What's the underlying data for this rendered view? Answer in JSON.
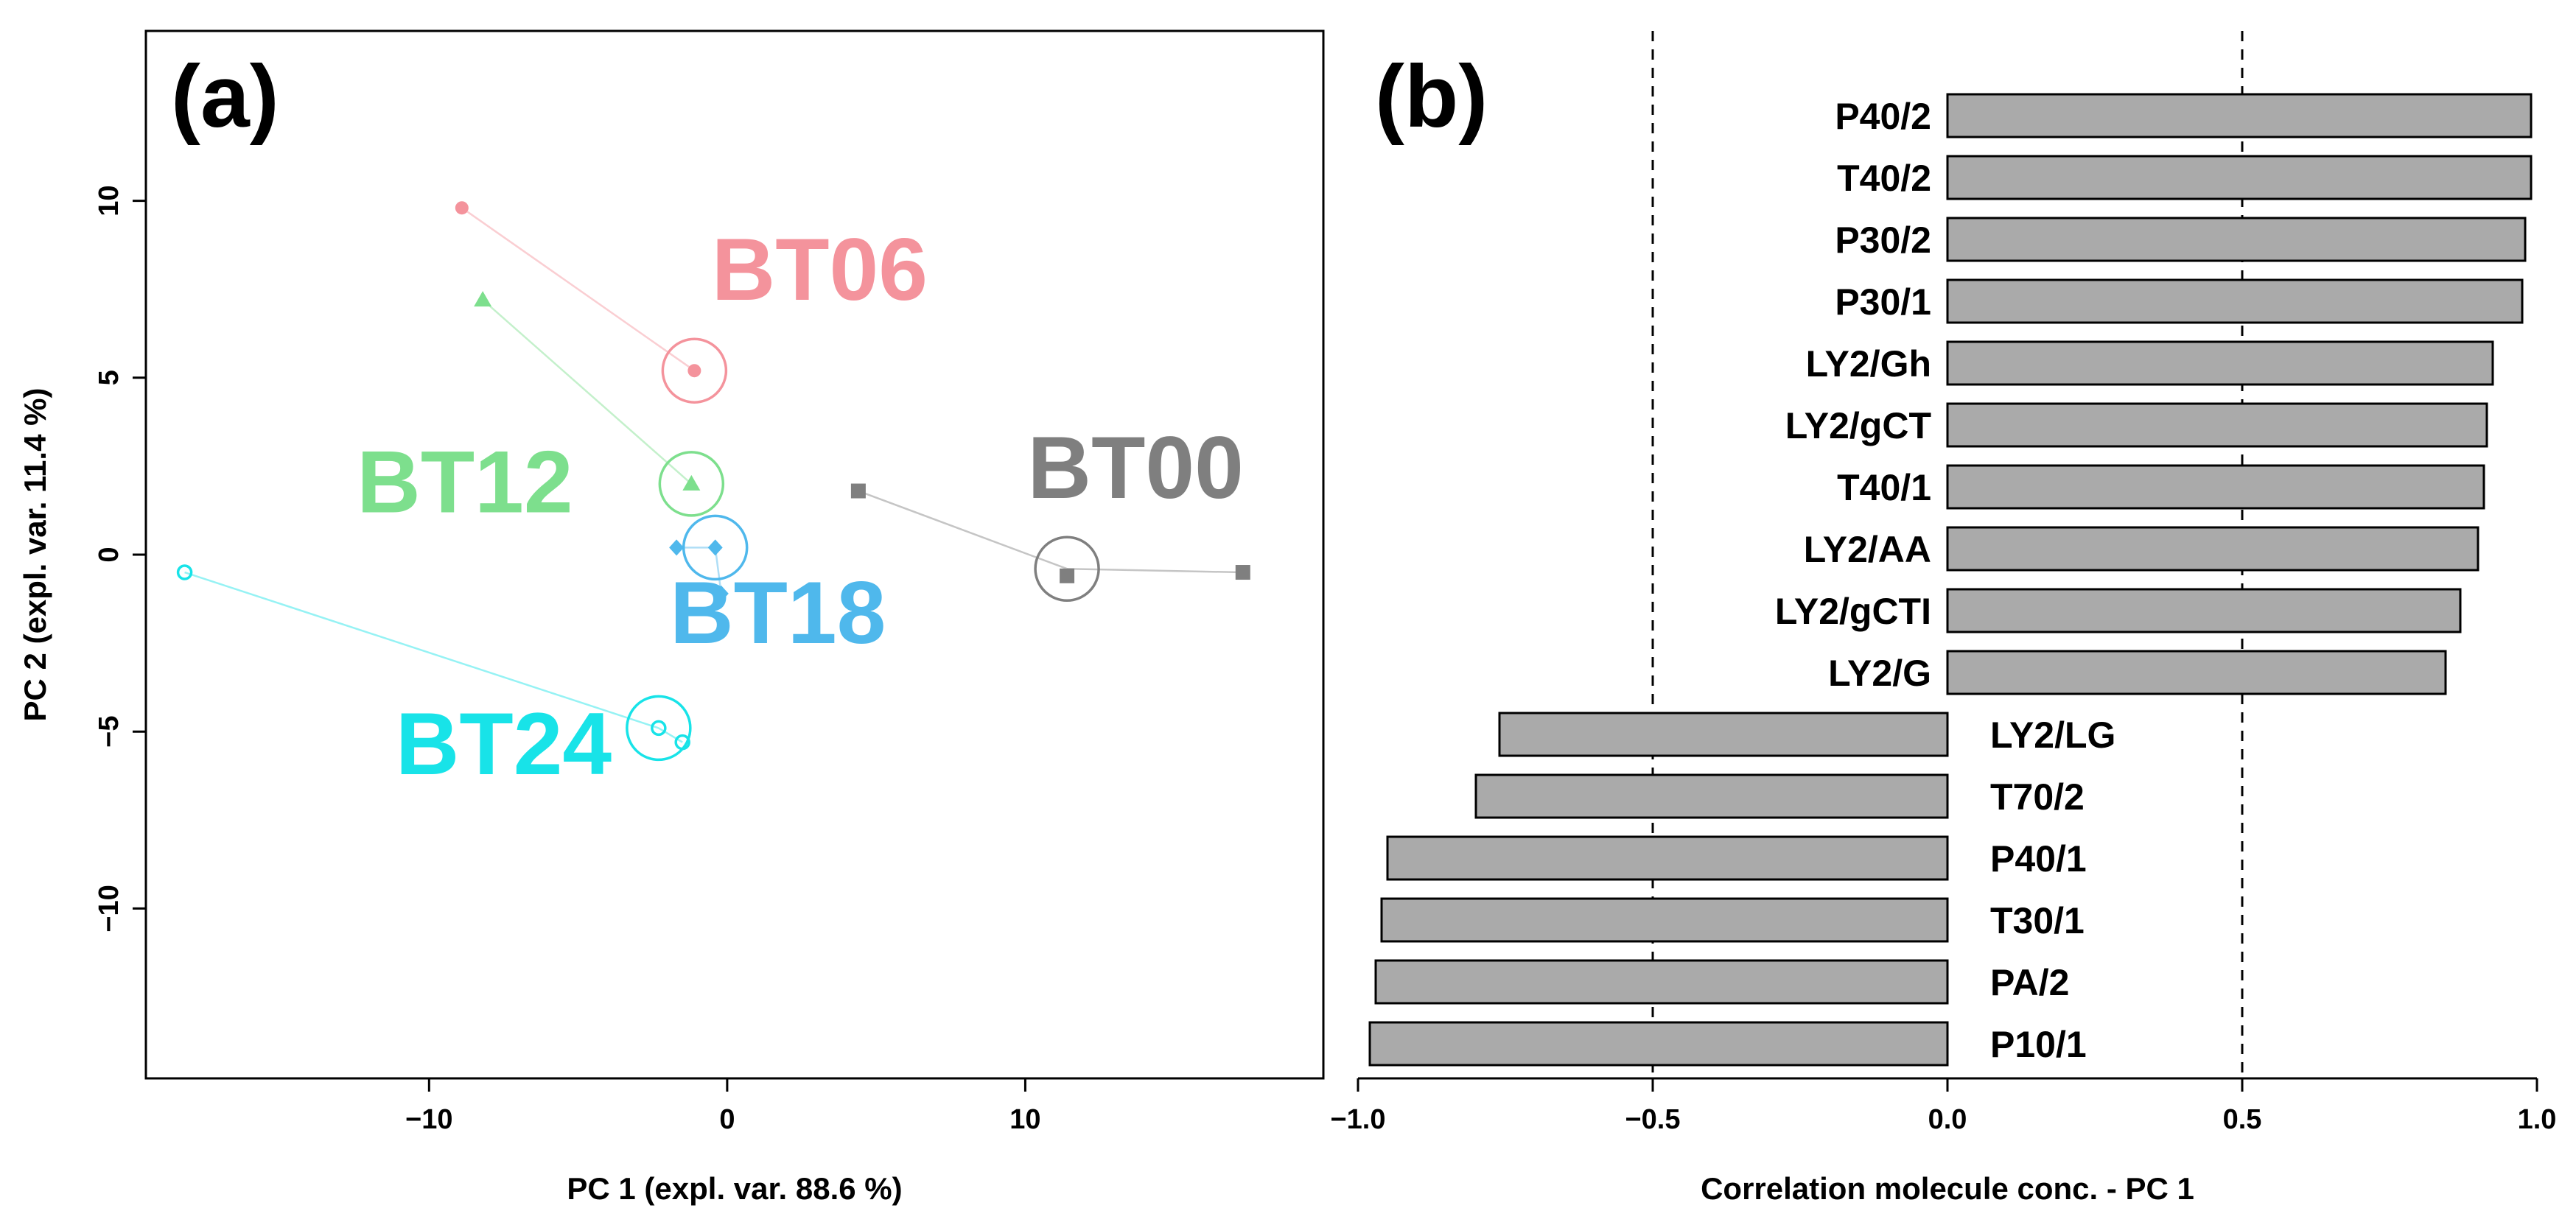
{
  "panel_a_label": "(a)",
  "panel_b_label": "(b)",
  "chart_data": [
    {
      "type": "scatter",
      "panel": "(a)",
      "xlabel": "PC 1 (expl. var. 88.6 %)",
      "ylabel": "PC 2 (expl. var. 11.4 %)",
      "xlim": [
        -19.5,
        20
      ],
      "ylim": [
        -14.8,
        14.8
      ],
      "xticks": [
        -10,
        0,
        10
      ],
      "yticks": [
        -10,
        -5,
        0,
        5,
        10
      ],
      "groups": [
        {
          "name": "BT06",
          "color": "#f4939c",
          "marker": "circle",
          "centroid": [
            -1.1,
            5.2
          ],
          "points": [
            [
              -8.9,
              9.8
            ],
            [
              -1.1,
              5.2
            ]
          ],
          "label_pos": [
            3.1,
            7.2
          ]
        },
        {
          "name": "BT12",
          "color": "#7ddf8d",
          "marker": "triangle",
          "centroid": [
            -1.2,
            2.0
          ],
          "points": [
            [
              -8.2,
              7.2
            ],
            [
              -1.2,
              2.0
            ]
          ],
          "label_pos": [
            -8.8,
            1.2
          ]
        },
        {
          "name": "BT18",
          "color": "#4fb8ec",
          "marker": "diamond",
          "centroid": [
            -0.4,
            0.2
          ],
          "points": [
            [
              -1.7,
              0.2
            ],
            [
              -0.4,
              0.2
            ],
            [
              -0.2,
              -1.1
            ]
          ],
          "label_pos": [
            1.7,
            -2.5
          ]
        },
        {
          "name": "BT24",
          "color": "#18e3e8",
          "marker": "open-circle",
          "centroid": [
            -2.3,
            -4.9
          ],
          "points": [
            [
              -18.2,
              -0.5
            ],
            [
              -2.3,
              -4.9
            ],
            [
              -1.5,
              -5.3
            ]
          ],
          "label_pos": [
            -7.5,
            -6.2
          ]
        },
        {
          "name": "BT00",
          "color": "#7f7f7f",
          "marker": "square",
          "centroid": [
            11.4,
            -0.4
          ],
          "points": [
            [
              4.4,
              1.8
            ],
            [
              11.4,
              -0.6
            ],
            [
              17.3,
              -0.5
            ]
          ],
          "label_pos": [
            13.7,
            1.6
          ]
        }
      ]
    },
    {
      "type": "bar",
      "panel": "(b)",
      "orientation": "horizontal",
      "xlabel": "Correlation molecule conc. - PC 1",
      "xlim": [
        -1.0,
        1.0
      ],
      "xticks": [
        "−1.0",
        "−0.5",
        "0.0",
        "0.5",
        "1.0"
      ],
      "xtick_values": [
        -1.0,
        -0.5,
        0.0,
        0.5,
        1.0
      ],
      "reference_lines": [
        -0.5,
        0.5
      ],
      "bar_color": "#aaaaaa",
      "categories": [
        "P40/2",
        "T40/2",
        "P30/2",
        "P30/1",
        "LY2/Gh",
        "LY2/gCT",
        "T40/1",
        "LY2/AA",
        "LY2/gCTI",
        "LY2/G",
        "LY2/LG",
        "T70/2",
        "P40/1",
        "T30/1",
        "PA/2",
        "P10/1"
      ],
      "values": [
        0.99,
        0.99,
        0.98,
        0.975,
        0.925,
        0.915,
        0.91,
        0.9,
        0.87,
        0.845,
        -0.76,
        -0.8,
        -0.95,
        -0.96,
        -0.97,
        -0.98
      ]
    }
  ]
}
